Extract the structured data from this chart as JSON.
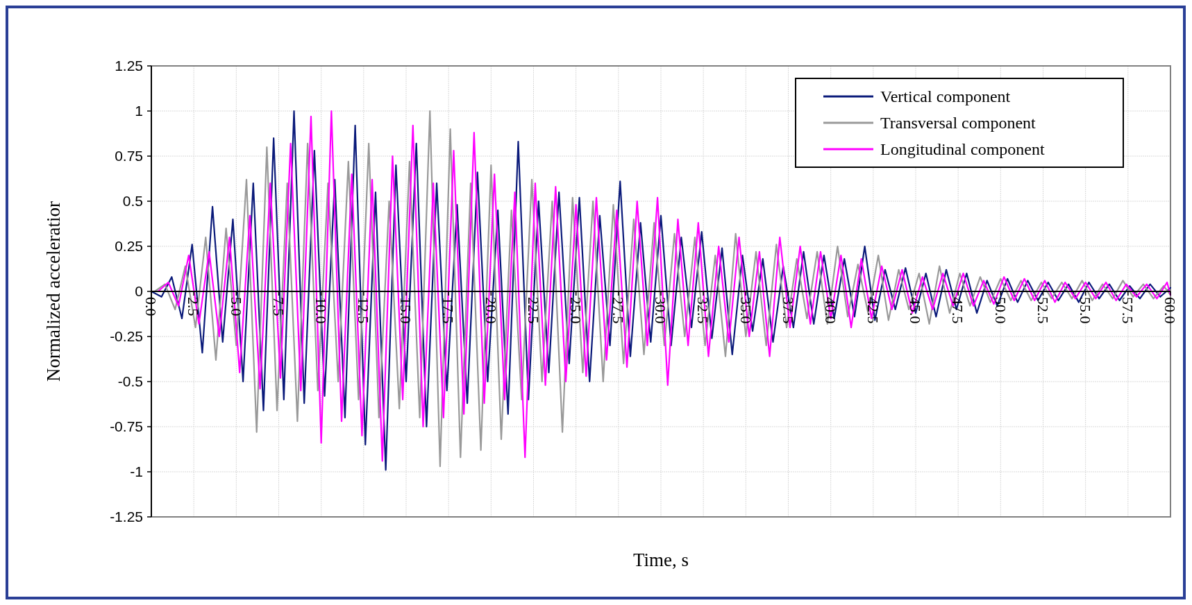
{
  "chart_data": {
    "type": "line",
    "xlabel": "Time, s",
    "ylabel": "Normalized acceleratior",
    "x": [
      0.0,
      0.6,
      1.2,
      1.8,
      2.4,
      3.0,
      3.6,
      4.2,
      4.8,
      5.4,
      6.0,
      6.6,
      7.2,
      7.8,
      8.4,
      9.0,
      9.6,
      10.2,
      10.8,
      11.4,
      12.0,
      12.6,
      13.2,
      13.8,
      14.4,
      15.0,
      15.6,
      16.2,
      16.8,
      17.4,
      18.0,
      18.6,
      19.2,
      19.8,
      20.4,
      21.0,
      21.6,
      22.2,
      22.8,
      23.4,
      24.0,
      24.6,
      25.2,
      25.8,
      26.4,
      27.0,
      27.6,
      28.2,
      28.8,
      29.4,
      30.0,
      30.6,
      31.2,
      31.8,
      32.4,
      33.0,
      33.6,
      34.2,
      34.8,
      35.4,
      36.0,
      36.6,
      37.2,
      37.8,
      38.4,
      39.0,
      39.6,
      40.2,
      40.8,
      41.4,
      42.0,
      42.6,
      43.2,
      43.8,
      44.4,
      45.0,
      45.6,
      46.2,
      46.8,
      47.4,
      48.0,
      48.6,
      49.2,
      49.8,
      50.4,
      51.0,
      51.6,
      52.2,
      52.8,
      53.4,
      54.0,
      54.6,
      55.2,
      55.8,
      56.4,
      57.0,
      57.6,
      58.2,
      58.8,
      59.4,
      60.0
    ],
    "series": [
      {
        "name": "Vertical component",
        "color": "#0a1a7a",
        "values": [
          0,
          -0.03,
          0.08,
          -0.15,
          0.26,
          -0.34,
          0.47,
          -0.28,
          0.4,
          -0.5,
          0.6,
          -0.66,
          0.85,
          -0.6,
          1.0,
          -0.62,
          0.78,
          -0.58,
          0.62,
          -0.7,
          0.92,
          -0.85,
          0.55,
          -0.99,
          0.7,
          -0.5,
          0.82,
          -0.75,
          0.6,
          -0.55,
          0.48,
          -0.62,
          0.66,
          -0.5,
          0.45,
          -0.68,
          0.83,
          -0.6,
          0.5,
          -0.45,
          0.55,
          -0.4,
          0.52,
          -0.5,
          0.42,
          -0.3,
          0.61,
          -0.36,
          0.38,
          -0.28,
          0.42,
          -0.3,
          0.3,
          -0.2,
          0.33,
          -0.26,
          0.24,
          -0.35,
          0.2,
          -0.22,
          0.18,
          -0.28,
          0.14,
          -0.2,
          0.22,
          -0.18,
          0.2,
          -0.15,
          0.18,
          -0.14,
          0.25,
          -0.16,
          0.12,
          -0.1,
          0.13,
          -0.12,
          0.1,
          -0.14,
          0.12,
          -0.1,
          0.1,
          -0.12,
          0.06,
          -0.08,
          0.07,
          -0.06,
          0.06,
          -0.05,
          0.05,
          -0.05,
          0.04,
          -0.06,
          0.05,
          -0.04,
          0.04,
          -0.05,
          0.03,
          -0.04,
          0.04,
          -0.03,
          0.02
        ]
      },
      {
        "name": "Transversal component",
        "color": "#999999",
        "x": [
          0.2,
          0.8,
          1.4,
          2.0,
          2.6,
          3.2,
          3.8,
          4.4,
          5.0,
          5.6,
          6.2,
          6.8,
          7.4,
          8.0,
          8.6,
          9.2,
          9.8,
          10.4,
          11.0,
          11.6,
          12.2,
          12.8,
          13.4,
          14.0,
          14.6,
          15.2,
          15.8,
          16.4,
          17.0,
          17.6,
          18.2,
          18.8,
          19.4,
          20.0,
          20.6,
          21.2,
          21.8,
          22.4,
          23.0,
          23.6,
          24.2,
          24.8,
          25.4,
          26.0,
          26.6,
          27.2,
          27.8,
          28.4,
          29.0,
          29.6,
          30.2,
          30.8,
          31.4,
          32.0,
          32.6,
          33.2,
          33.8,
          34.4,
          35.0,
          35.6,
          36.2,
          36.8,
          37.4,
          38.0,
          38.6,
          39.2,
          39.8,
          40.4,
          41.0,
          41.6,
          42.2,
          42.8,
          43.4,
          44.0,
          44.6,
          45.2,
          45.8,
          46.4,
          47.0,
          47.6,
          48.2,
          48.8,
          49.4,
          50.0,
          50.6,
          51.2,
          51.8,
          52.4,
          53.0,
          53.6,
          54.2,
          54.8,
          55.4,
          56.0,
          56.6,
          57.2,
          57.8,
          58.4,
          59.0,
          59.6,
          60.0
        ],
        "values": [
          0,
          0.04,
          -0.1,
          0.14,
          -0.2,
          0.3,
          -0.38,
          0.35,
          -0.3,
          0.62,
          -0.78,
          0.8,
          -0.66,
          0.6,
          -0.72,
          0.82,
          -0.55,
          0.6,
          -0.5,
          0.72,
          -0.6,
          0.82,
          -0.7,
          0.5,
          -0.65,
          0.72,
          -0.7,
          1.0,
          -0.97,
          0.9,
          -0.92,
          0.6,
          -0.88,
          0.7,
          -0.82,
          0.45,
          -0.6,
          0.62,
          -0.5,
          0.5,
          -0.78,
          0.52,
          -0.45,
          0.5,
          -0.5,
          0.48,
          -0.4,
          0.4,
          -0.35,
          0.38,
          -0.3,
          0.32,
          -0.25,
          0.3,
          -0.3,
          0.2,
          -0.36,
          0.32,
          -0.25,
          0.22,
          -0.3,
          0.26,
          -0.2,
          0.18,
          -0.15,
          0.22,
          -0.18,
          0.25,
          -0.14,
          0.15,
          -0.12,
          0.2,
          -0.16,
          0.12,
          -0.1,
          0.1,
          -0.18,
          0.14,
          -0.12,
          0.1,
          -0.08,
          0.08,
          -0.06,
          0.07,
          -0.05,
          0.06,
          -0.05,
          0.05,
          -0.04,
          0.05,
          -0.04,
          0.06,
          -0.05,
          0.04,
          -0.04,
          0.06,
          -0.03,
          0.04,
          -0.04,
          0.03,
          -0.02
        ]
      },
      {
        "name": "Longitudinal component",
        "color": "#ff00ff",
        "x": [
          0.4,
          1.0,
          1.6,
          2.2,
          2.8,
          3.4,
          4.0,
          4.6,
          5.2,
          5.8,
          6.4,
          7.0,
          7.6,
          8.2,
          8.8,
          9.4,
          10.0,
          10.6,
          11.2,
          11.8,
          12.4,
          13.0,
          13.6,
          14.2,
          14.8,
          15.4,
          16.0,
          16.6,
          17.2,
          17.8,
          18.4,
          19.0,
          19.6,
          20.2,
          20.8,
          21.4,
          22.0,
          22.6,
          23.2,
          23.8,
          24.4,
          25.0,
          25.6,
          26.2,
          26.8,
          27.4,
          28.0,
          28.6,
          29.2,
          29.8,
          30.4,
          31.0,
          31.6,
          32.2,
          32.8,
          33.4,
          34.0,
          34.6,
          35.2,
          35.8,
          36.4,
          37.0,
          37.6,
          38.2,
          38.8,
          39.4,
          40.0,
          40.6,
          41.2,
          41.8,
          42.4,
          43.0,
          43.6,
          44.2,
          44.8,
          45.4,
          46.0,
          46.6,
          47.2,
          47.8,
          48.4,
          49.0,
          49.6,
          50.2,
          50.8,
          51.4,
          52.0,
          52.6,
          53.2,
          53.8,
          54.4,
          55.0,
          55.6,
          56.2,
          56.8,
          57.4,
          58.0,
          58.6,
          59.2,
          59.8,
          60.0
        ],
        "values": [
          0,
          0.05,
          -0.08,
          0.2,
          -0.18,
          0.22,
          -0.25,
          0.3,
          -0.45,
          0.42,
          -0.54,
          0.6,
          -0.48,
          0.82,
          -0.55,
          0.97,
          -0.84,
          1.0,
          -0.72,
          0.65,
          -0.8,
          0.62,
          -0.94,
          0.75,
          -0.6,
          0.92,
          -0.75,
          0.6,
          -0.7,
          0.78,
          -0.68,
          0.88,
          -0.62,
          0.65,
          -0.6,
          0.55,
          -0.92,
          0.6,
          -0.52,
          0.58,
          -0.5,
          0.48,
          -0.47,
          0.52,
          -0.38,
          0.45,
          -0.42,
          0.5,
          -0.3,
          0.52,
          -0.52,
          0.4,
          -0.3,
          0.38,
          -0.36,
          0.25,
          -0.28,
          0.3,
          -0.25,
          0.22,
          -0.36,
          0.3,
          -0.2,
          0.25,
          -0.18,
          0.22,
          -0.15,
          0.2,
          -0.2,
          0.18,
          -0.15,
          0.14,
          -0.1,
          0.12,
          -0.12,
          0.08,
          -0.1,
          0.1,
          -0.08,
          0.1,
          -0.08,
          0.06,
          -0.07,
          0.08,
          -0.05,
          0.07,
          -0.05,
          0.06,
          -0.06,
          0.05,
          -0.04,
          0.05,
          -0.04,
          0.05,
          -0.05,
          0.04,
          -0.03,
          0.04,
          -0.04,
          0.05,
          -0.02
        ]
      }
    ],
    "xlim": [
      0,
      60
    ],
    "xticks": [
      {
        "value": 0,
        "label": "0.0"
      },
      {
        "value": 2.5,
        "label": "2.5"
      },
      {
        "value": 5,
        "label": "5.0"
      },
      {
        "value": 7.5,
        "label": "7.5"
      },
      {
        "value": 10,
        "label": "10.0"
      },
      {
        "value": 12.5,
        "label": "12.5"
      },
      {
        "value": 15,
        "label": "15.0"
      },
      {
        "value": 17.5,
        "label": "17.5"
      },
      {
        "value": 20,
        "label": "20.0"
      },
      {
        "value": 22.5,
        "label": "22.5"
      },
      {
        "value": 25,
        "label": "25.0"
      },
      {
        "value": 27.5,
        "label": "27.5"
      },
      {
        "value": 30,
        "label": "30.0"
      },
      {
        "value": 32.5,
        "label": "32.5"
      },
      {
        "value": 35,
        "label": "35.0"
      },
      {
        "value": 37.5,
        "label": "37.5"
      },
      {
        "value": 40,
        "label": "40.0"
      },
      {
        "value": 42.5,
        "label": "42.5"
      },
      {
        "value": 45,
        "label": "45.0"
      },
      {
        "value": 47.5,
        "label": "47.5"
      },
      {
        "value": 50,
        "label": "50.0"
      },
      {
        "value": 52.5,
        "label": "52.5"
      },
      {
        "value": 55,
        "label": "55.0"
      },
      {
        "value": 57.5,
        "label": "57.5"
      },
      {
        "value": 60,
        "label": "60.0"
      }
    ],
    "ylim": [
      -1.25,
      1.25
    ],
    "yticks": [
      -1.25,
      -1,
      -0.75,
      -0.5,
      -0.25,
      0,
      0.25,
      0.5,
      0.75,
      1,
      1.25
    ],
    "grid": true,
    "legend": "top right",
    "marker": "none",
    "line_style": "solid"
  }
}
